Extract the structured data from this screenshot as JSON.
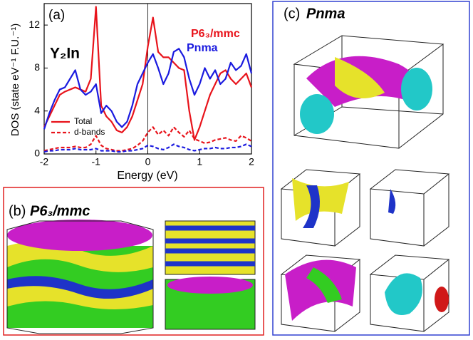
{
  "chart_data": {
    "type": "line",
    "panel_label": "(a)",
    "compound_label": "Y₂In",
    "xlabel": "Energy (eV)",
    "ylabel": "DOS (state eV⁻¹ F.U.⁻¹)",
    "x": [
      -2,
      -1.9,
      -1.8,
      -1.7,
      -1.6,
      -1.5,
      -1.4,
      -1.3,
      -1.2,
      -1.1,
      -1,
      -0.9,
      -0.8,
      -0.7,
      -0.6,
      -0.5,
      -0.4,
      -0.3,
      -0.2,
      -0.1,
      0,
      0.1,
      0.2,
      0.3,
      0.4,
      0.5,
      0.6,
      0.7,
      0.8,
      0.9,
      1,
      1.1,
      1.2,
      1.3,
      1.4,
      1.5,
      1.6,
      1.7,
      1.8,
      1.9,
      2
    ],
    "xlim": [
      -2,
      2
    ],
    "xticks": [
      -2,
      -1,
      0,
      1,
      2
    ],
    "ylim": [
      0,
      14
    ],
    "yticks": [
      0,
      4,
      8,
      12
    ],
    "vline": 0,
    "series": [
      {
        "name": "P6₃/mmc",
        "color": "#e8131b",
        "style": "solid",
        "values": [
          2.5,
          3.5,
          4.5,
          5.5,
          5.8,
          6.0,
          6.2,
          6.0,
          5.8,
          7.0,
          13.7,
          4.5,
          3.5,
          3.0,
          2.2,
          2.0,
          2.5,
          3.5,
          5.0,
          6.5,
          10.0,
          12.7,
          9.5,
          9.0,
          9.0,
          8.5,
          8.0,
          7.8,
          4.0,
          1.3,
          2.5,
          4.0,
          5.5,
          6.5,
          7.5,
          7.8,
          7.0,
          6.5,
          7.0,
          7.5,
          6.2
        ]
      },
      {
        "name": "Pnma",
        "color": "#1a1adf",
        "style": "solid",
        "values": [
          2.3,
          3.8,
          5.0,
          6.0,
          6.2,
          7.0,
          7.8,
          6.0,
          5.5,
          5.8,
          6.5,
          3.8,
          4.5,
          4.0,
          3.0,
          2.5,
          3.0,
          4.5,
          6.5,
          7.5,
          8.5,
          9.3,
          8.0,
          6.5,
          7.5,
          9.5,
          9.8,
          9.0,
          7.0,
          5.5,
          6.5,
          8.0,
          7.0,
          7.8,
          6.5,
          7.0,
          8.5,
          7.8,
          8.2,
          9.3,
          7.5
        ]
      },
      {
        "color": "#e8131b",
        "style": "dashed",
        "values": [
          0.3,
          0.4,
          0.5,
          0.6,
          0.6,
          0.6,
          0.7,
          0.6,
          0.6,
          0.9,
          1.7,
          0.8,
          0.5,
          0.4,
          0.3,
          0.3,
          0.4,
          0.5,
          0.8,
          1.2,
          2.0,
          2.5,
          1.8,
          2.2,
          1.7,
          2.5,
          2.0,
          1.6,
          2.2,
          1.4,
          1.2,
          1.0,
          1.1,
          1.3,
          1.4,
          1.5,
          1.3,
          1.2,
          1.7,
          1.5,
          1.2
        ]
      },
      {
        "color": "#1a1adf",
        "style": "dashed",
        "values": [
          0.2,
          0.3,
          0.3,
          0.4,
          0.4,
          0.4,
          0.5,
          0.4,
          0.4,
          0.4,
          0.5,
          0.3,
          0.3,
          0.3,
          0.2,
          0.2,
          0.3,
          0.3,
          0.4,
          0.5,
          0.8,
          0.7,
          0.5,
          0.4,
          0.6,
          0.9,
          0.7,
          0.6,
          0.4,
          0.3,
          0.4,
          0.5,
          0.5,
          0.6,
          0.5,
          0.5,
          0.6,
          0.6,
          0.7,
          0.9,
          0.7
        ]
      }
    ],
    "legend": [
      {
        "label": "Total",
        "style": "solid",
        "color": "#e8131b"
      },
      {
        "label": "d-bands",
        "style": "dashed",
        "color": "#e8131b"
      }
    ]
  },
  "panel_b": {
    "label": "(b)",
    "title": "P6₃/mmc"
  },
  "panel_c": {
    "label": "(c)",
    "title": "Pnma"
  }
}
